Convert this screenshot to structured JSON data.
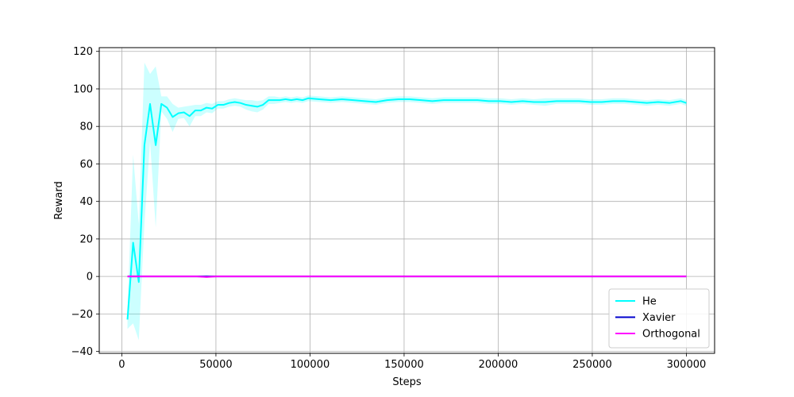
{
  "chart_data": {
    "type": "line",
    "title": "",
    "xlabel": "Steps",
    "ylabel": "Reward",
    "xlim": [
      -12000,
      315000
    ],
    "ylim": [
      -41,
      122
    ],
    "xticks": [
      0,
      50000,
      100000,
      150000,
      200000,
      250000,
      300000
    ],
    "xtick_labels": [
      "0",
      "50000",
      "100000",
      "150000",
      "200000",
      "250000",
      "300000"
    ],
    "yticks": [
      -40,
      -20,
      0,
      20,
      40,
      60,
      80,
      100,
      120
    ],
    "ytick_labels": [
      "−40",
      "−20",
      "0",
      "20",
      "40",
      "60",
      "80",
      "100",
      "120"
    ],
    "grid": true,
    "legend_position": "bottom-right",
    "series": [
      {
        "name": "He",
        "color": "#00ffff",
        "band_color": "#00ffff",
        "x": [
          3000,
          6000,
          9000,
          12000,
          15000,
          18000,
          21000,
          24000,
          27000,
          30000,
          33000,
          36000,
          39000,
          42000,
          45000,
          48000,
          51000,
          54000,
          57000,
          60000,
          63000,
          66000,
          69000,
          72000,
          75000,
          78000,
          81000,
          84000,
          87000,
          90000,
          93000,
          96000,
          99000,
          105000,
          111000,
          117000,
          123000,
          129000,
          135000,
          141000,
          147000,
          153000,
          159000,
          165000,
          171000,
          177000,
          183000,
          189000,
          195000,
          201000,
          207000,
          213000,
          219000,
          225000,
          231000,
          237000,
          243000,
          249000,
          255000,
          261000,
          267000,
          273000,
          279000,
          285000,
          291000,
          297000,
          300000
        ],
        "y": [
          -23,
          18,
          -3,
          70,
          92,
          70,
          92,
          90,
          85,
          87,
          87.5,
          85.5,
          88.5,
          88.5,
          90,
          89.5,
          91.5,
          91.5,
          92.5,
          93,
          92.5,
          91.5,
          91,
          90.5,
          91.5,
          94,
          94,
          94,
          94.5,
          94,
          94.5,
          94,
          95,
          94.5,
          94,
          94.5,
          94,
          93.5,
          93,
          94,
          94.5,
          94.5,
          94,
          93.5,
          94,
          94,
          94,
          94,
          93.5,
          93.5,
          93,
          93.5,
          93,
          93,
          93.5,
          93.5,
          93.5,
          93,
          93,
          93.5,
          93.5,
          93,
          92.5,
          93,
          92.5,
          93.5,
          92.5
        ],
        "lower": [
          -28,
          -25,
          -34,
          28,
          72,
          26,
          88,
          84,
          77,
          84,
          84.5,
          80,
          85.5,
          85.5,
          87.5,
          87,
          89.5,
          89.5,
          90.5,
          91,
          90.5,
          89,
          88,
          87.5,
          89,
          92,
          92,
          92.5,
          93,
          92.5,
          93,
          92.5,
          93.5,
          93,
          92.5,
          93,
          92.5,
          92,
          91.5,
          92.5,
          93,
          93,
          92.5,
          92,
          92.5,
          92.5,
          92.5,
          92.5,
          92,
          92,
          91.5,
          92,
          91.5,
          91,
          92,
          92,
          92,
          91.5,
          91.5,
          92,
          92,
          91.5,
          91,
          91.5,
          91,
          92,
          91
        ],
        "upper": [
          -18,
          65,
          28,
          114,
          108,
          112,
          96,
          96,
          92,
          90,
          90.5,
          91,
          91.5,
          91.5,
          92.5,
          92,
          93.5,
          93.5,
          94.5,
          95,
          94.5,
          94,
          94,
          93.5,
          94,
          96,
          96,
          95.5,
          96,
          95.5,
          96,
          95.5,
          96.5,
          96,
          95.5,
          96,
          95.5,
          95,
          94.5,
          95.5,
          96,
          96,
          95.5,
          95,
          95.5,
          95.5,
          95.5,
          95.5,
          95,
          95,
          94.5,
          95,
          94.5,
          95,
          95,
          95,
          95,
          94.5,
          94.5,
          95,
          95,
          94.5,
          94,
          94.5,
          94,
          95,
          94
        ]
      },
      {
        "name": "Xavier",
        "color": "#0000cc",
        "x": [
          3000,
          300000
        ],
        "y": [
          0,
          0
        ]
      },
      {
        "name": "Orthogonal",
        "color": "#ff00ff",
        "x": [
          3000,
          40000,
          45000,
          50000,
          300000
        ],
        "y": [
          0,
          0,
          -0.3,
          0,
          0
        ]
      }
    ]
  }
}
